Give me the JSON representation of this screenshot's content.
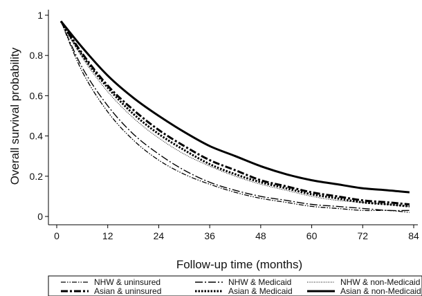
{
  "chart_data": {
    "type": "line",
    "title": "",
    "xlabel": "Follow-up time (months)",
    "ylabel": "Overall survival probability",
    "xlim": [
      0,
      85
    ],
    "ylim": [
      0,
      1
    ],
    "xticks": [
      0,
      12,
      24,
      36,
      48,
      60,
      72,
      84
    ],
    "yticks": [
      0,
      0.2,
      0.4,
      0.6,
      0.8,
      1
    ],
    "ytick_labels": [
      "0",
      "0.2",
      "0.4",
      "0.6",
      "0.8",
      "1"
    ],
    "grid": false,
    "legend_position": "bottom",
    "x": [
      1,
      6,
      12,
      18,
      24,
      30,
      36,
      42,
      48,
      54,
      60,
      66,
      72,
      78,
      83
    ],
    "series": [
      {
        "name": "NHW & uninsured",
        "style": "dash-dot-dot",
        "values": [
          0.97,
          0.72,
          0.52,
          0.38,
          0.28,
          0.21,
          0.16,
          0.12,
          0.09,
          0.07,
          0.05,
          0.04,
          0.03,
          0.03,
          0.02
        ]
      },
      {
        "name": "NHW & Medicaid",
        "style": "long-dash-dot",
        "values": [
          0.97,
          0.74,
          0.55,
          0.41,
          0.31,
          0.23,
          0.17,
          0.13,
          0.1,
          0.08,
          0.06,
          0.05,
          0.04,
          0.03,
          0.03
        ]
      },
      {
        "name": "NHW & non-Medicaid",
        "style": "fine-dot",
        "values": [
          0.97,
          0.79,
          0.62,
          0.49,
          0.39,
          0.31,
          0.25,
          0.2,
          0.16,
          0.13,
          0.1,
          0.08,
          0.07,
          0.06,
          0.05
        ]
      },
      {
        "name": "Asian & uninsured",
        "style": "thick-dash-dot",
        "values": [
          0.97,
          0.81,
          0.65,
          0.53,
          0.43,
          0.35,
          0.28,
          0.23,
          0.18,
          0.15,
          0.12,
          0.1,
          0.08,
          0.07,
          0.06
        ]
      },
      {
        "name": "Asian & Medicaid",
        "style": "thick-dot",
        "values": [
          0.97,
          0.8,
          0.64,
          0.51,
          0.41,
          0.33,
          0.26,
          0.21,
          0.17,
          0.14,
          0.11,
          0.09,
          0.07,
          0.06,
          0.05
        ]
      },
      {
        "name": "Asian & non-Medicaid",
        "style": "solid",
        "values": [
          0.97,
          0.84,
          0.7,
          0.59,
          0.5,
          0.42,
          0.35,
          0.3,
          0.25,
          0.21,
          0.18,
          0.16,
          0.14,
          0.13,
          0.12
        ]
      }
    ]
  }
}
